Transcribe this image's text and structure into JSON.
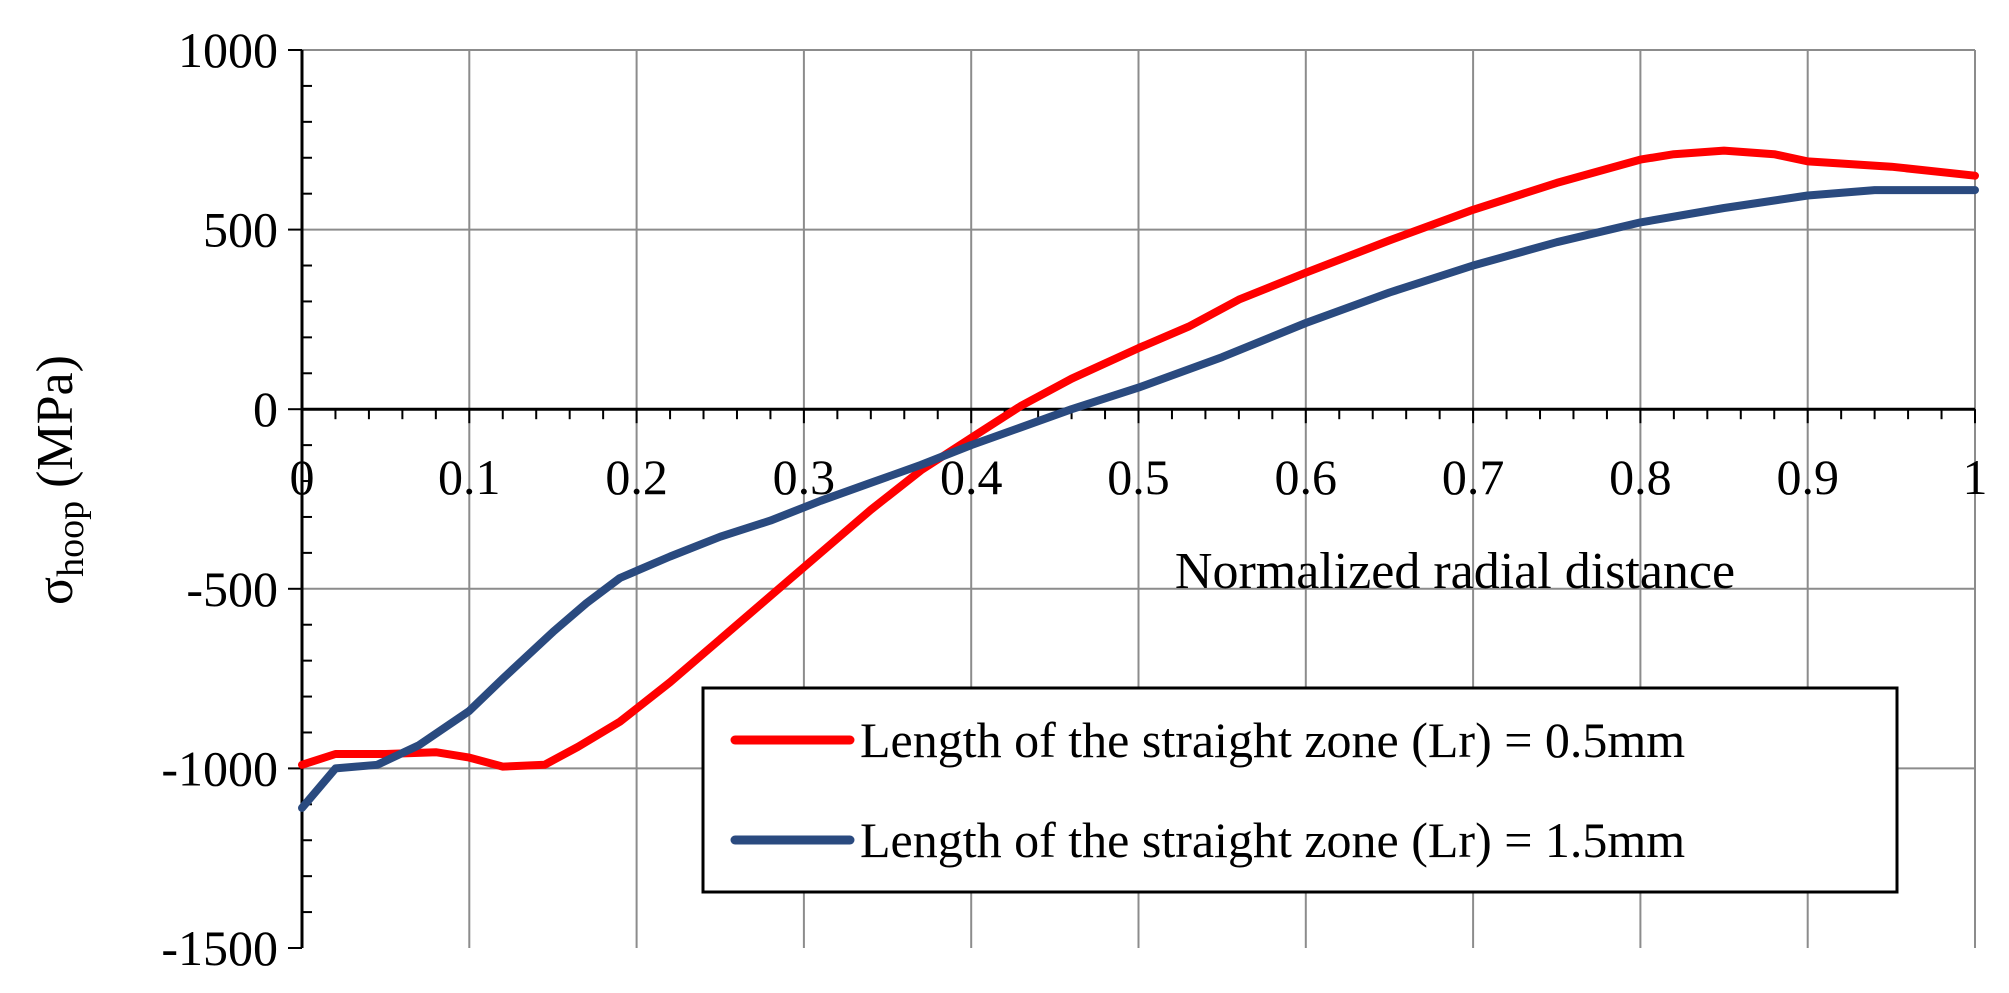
{
  "chart_data": {
    "type": "line",
    "title": "",
    "xlabel": "Normalized radial distance",
    "ylabel": {
      "base": "σ",
      "subscript": "hoop",
      "unit": " (MPa)"
    },
    "xlim": [
      0,
      1
    ],
    "ylim": [
      -1500,
      1000
    ],
    "x_ticks": [
      0,
      0.1,
      0.2,
      0.3,
      0.4,
      0.5,
      0.6,
      0.7,
      0.8,
      0.9,
      1
    ],
    "x_tick_labels": [
      "0",
      "0.1",
      "0.2",
      "0.3",
      "0.4",
      "0.5",
      "0.6",
      "0.7",
      "0.8",
      "0.9",
      "1"
    ],
    "y_ticks": [
      1000,
      500,
      0,
      -500,
      -1000,
      -1500
    ],
    "y_tick_labels": [
      "1000",
      "500",
      "0",
      "-500",
      "-1000",
      "-1500"
    ],
    "grid": true,
    "legend_position": "bottom-right",
    "series": [
      {
        "name": "Length of the straight zone (Lr) = 0.5mm",
        "color": "#ff0000",
        "x": [
          0,
          0.02,
          0.05,
          0.08,
          0.1,
          0.12,
          0.145,
          0.165,
          0.19,
          0.22,
          0.25,
          0.28,
          0.31,
          0.34,
          0.37,
          0.4,
          0.43,
          0.46,
          0.5,
          0.53,
          0.56,
          0.6,
          0.65,
          0.7,
          0.75,
          0.8,
          0.82,
          0.85,
          0.88,
          0.9,
          0.95,
          1.0
        ],
        "y": [
          -990,
          -960,
          -960,
          -955,
          -970,
          -995,
          -990,
          -940,
          -870,
          -760,
          -640,
          -520,
          -400,
          -280,
          -170,
          -80,
          10,
          85,
          170,
          230,
          305,
          380,
          470,
          555,
          630,
          695,
          710,
          720,
          710,
          690,
          675,
          650
        ]
      },
      {
        "name": "Length of the straight zone (Lr) = 1.5mm",
        "color": "#2a4a7f",
        "x": [
          0,
          0.02,
          0.045,
          0.07,
          0.1,
          0.12,
          0.15,
          0.17,
          0.19,
          0.22,
          0.25,
          0.28,
          0.31,
          0.34,
          0.37,
          0.4,
          0.43,
          0.46,
          0.5,
          0.55,
          0.6,
          0.65,
          0.7,
          0.75,
          0.8,
          0.85,
          0.9,
          0.94,
          1.0
        ],
        "y": [
          -1110,
          -1000,
          -990,
          -935,
          -840,
          -750,
          -620,
          -540,
          -470,
          -410,
          -355,
          -310,
          -255,
          -205,
          -155,
          -100,
          -50,
          0,
          60,
          145,
          240,
          325,
          400,
          465,
          520,
          560,
          595,
          610,
          610
        ]
      }
    ]
  }
}
